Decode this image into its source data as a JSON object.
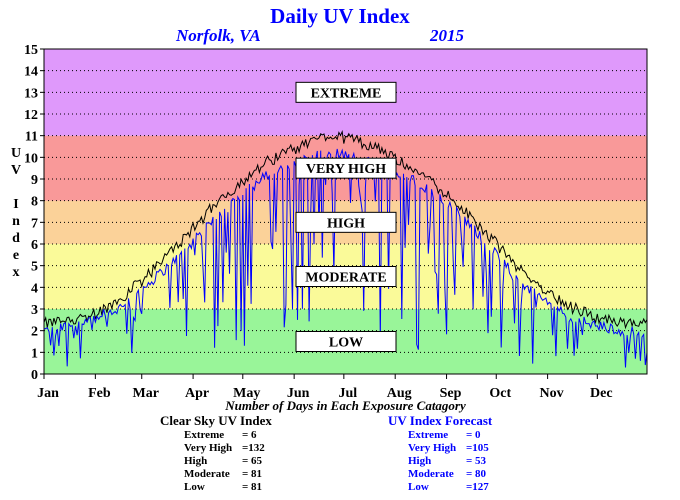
{
  "title": "Daily UV Index",
  "location": "Norfolk, VA",
  "year": "2015",
  "y_axis_title": "UV Index",
  "x_caption": "Number of Days in Each Exposure Catagory",
  "colors": {
    "low": "#99f599",
    "moderate": "#fafa99",
    "high": "#fbd299",
    "very_high": "#f99999",
    "extreme": "#df99fb",
    "forecast_line": "#0000ff",
    "clear_sky_line": "#000000",
    "title_text": "#0000ff"
  },
  "categories": {
    "low": "LOW",
    "moderate": "MODERATE",
    "high": "HIGH",
    "very_high": "VERY HIGH",
    "extreme": "EXTREME"
  },
  "clear_sky": {
    "heading": "Clear Sky UV Index",
    "rows": [
      {
        "label": "Extreme",
        "value": "= 6"
      },
      {
        "label": "Very High",
        "value": "=132"
      },
      {
        "label": "High",
        "value": "= 65"
      },
      {
        "label": "Moderate",
        "value": "= 81"
      },
      {
        "label": "Low",
        "value": "= 81"
      }
    ]
  },
  "forecast": {
    "heading": "UV Index Forecast",
    "rows": [
      {
        "label": "Extreme",
        "value": "= 0"
      },
      {
        "label": "Very High",
        "value": "=105"
      },
      {
        "label": "High",
        "value": "= 53"
      },
      {
        "label": "Moderate",
        "value": "= 80"
      },
      {
        "label": "Low",
        "value": "=127"
      }
    ]
  },
  "chart_data": {
    "type": "line",
    "title": "Daily UV Index",
    "ylabel": "UV Index",
    "xlabel": "",
    "xlim": [
      1,
      365
    ],
    "ylim": [
      0,
      15
    ],
    "yticks": [
      0,
      1,
      2,
      3,
      4,
      5,
      6,
      7,
      8,
      9,
      10,
      11,
      12,
      13,
      14,
      15
    ],
    "months": [
      "Jan",
      "Feb",
      "Mar",
      "Apr",
      "May",
      "Jun",
      "Jul",
      "Aug",
      "Sep",
      "Oct",
      "Nov",
      "Dec"
    ],
    "month_start_days": [
      1,
      32,
      60,
      91,
      121,
      152,
      182,
      213,
      244,
      274,
      305,
      335
    ],
    "grid": "horizontal dotted",
    "bands": [
      {
        "name": "low",
        "from": 0,
        "to": 3
      },
      {
        "name": "moderate",
        "from": 3,
        "to": 6
      },
      {
        "name": "high",
        "from": 6,
        "to": 8
      },
      {
        "name": "very_high",
        "from": 8,
        "to": 11
      },
      {
        "name": "extreme",
        "from": 11,
        "to": 15
      }
    ],
    "band_label_values": {
      "low": 1.5,
      "moderate": 4.5,
      "high": 7,
      "very_high": 9.5,
      "extreme": 13
    },
    "series": [
      {
        "name": "Clear Sky UV Index",
        "color": "#000000",
        "x": [
          1,
          15,
          32,
          46,
          60,
          75,
          91,
          105,
          121,
          136,
          152,
          166,
          172,
          182,
          196,
          213,
          228,
          244,
          258,
          274,
          288,
          305,
          319,
          335,
          350,
          365
        ],
        "values": [
          2.3,
          2.5,
          2.8,
          3.4,
          4.3,
          5.4,
          6.7,
          7.9,
          8.9,
          9.8,
          10.4,
          10.8,
          11.0,
          10.9,
          10.6,
          10.0,
          9.3,
          8.3,
          7.3,
          6.0,
          4.8,
          3.8,
          3.1,
          2.6,
          2.4,
          2.3
        ]
      },
      {
        "name": "UV Index Forecast",
        "color": "#0000ff",
        "x": [
          1,
          15,
          32,
          46,
          60,
          75,
          91,
          105,
          121,
          136,
          152,
          166,
          172,
          182,
          196,
          213,
          228,
          244,
          258,
          274,
          288,
          305,
          319,
          335,
          350,
          365
        ],
        "values": [
          2.0,
          2.2,
          2.6,
          3.0,
          3.9,
          4.9,
          6.1,
          7.2,
          8.3,
          9.2,
          9.8,
          10.1,
          10.2,
          10.1,
          9.8,
          9.3,
          8.8,
          7.9,
          6.9,
          5.5,
          4.3,
          3.3,
          2.6,
          2.2,
          2.0,
          1.9
        ]
      }
    ]
  }
}
